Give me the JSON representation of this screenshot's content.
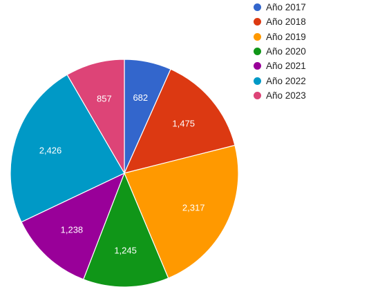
{
  "chart_data": {
    "type": "pie",
    "categories": [
      "Año 2017",
      "Año 2018",
      "Año 2019",
      "Año 2020",
      "Año 2021",
      "Año 2022",
      "Año 2023"
    ],
    "values": [
      682,
      1475,
      2317,
      1245,
      1238,
      2426,
      857
    ],
    "value_labels": [
      "682",
      "1,475",
      "2,317",
      "1,245",
      "1,238",
      "2,426",
      "857"
    ],
    "colors": [
      "#3366cc",
      "#dc3912",
      "#ff9900",
      "#109618",
      "#990099",
      "#0099c6",
      "#dd4477"
    ],
    "start_angle": "12 o'clock",
    "direction": "clockwise",
    "legend_position": "top-right"
  }
}
